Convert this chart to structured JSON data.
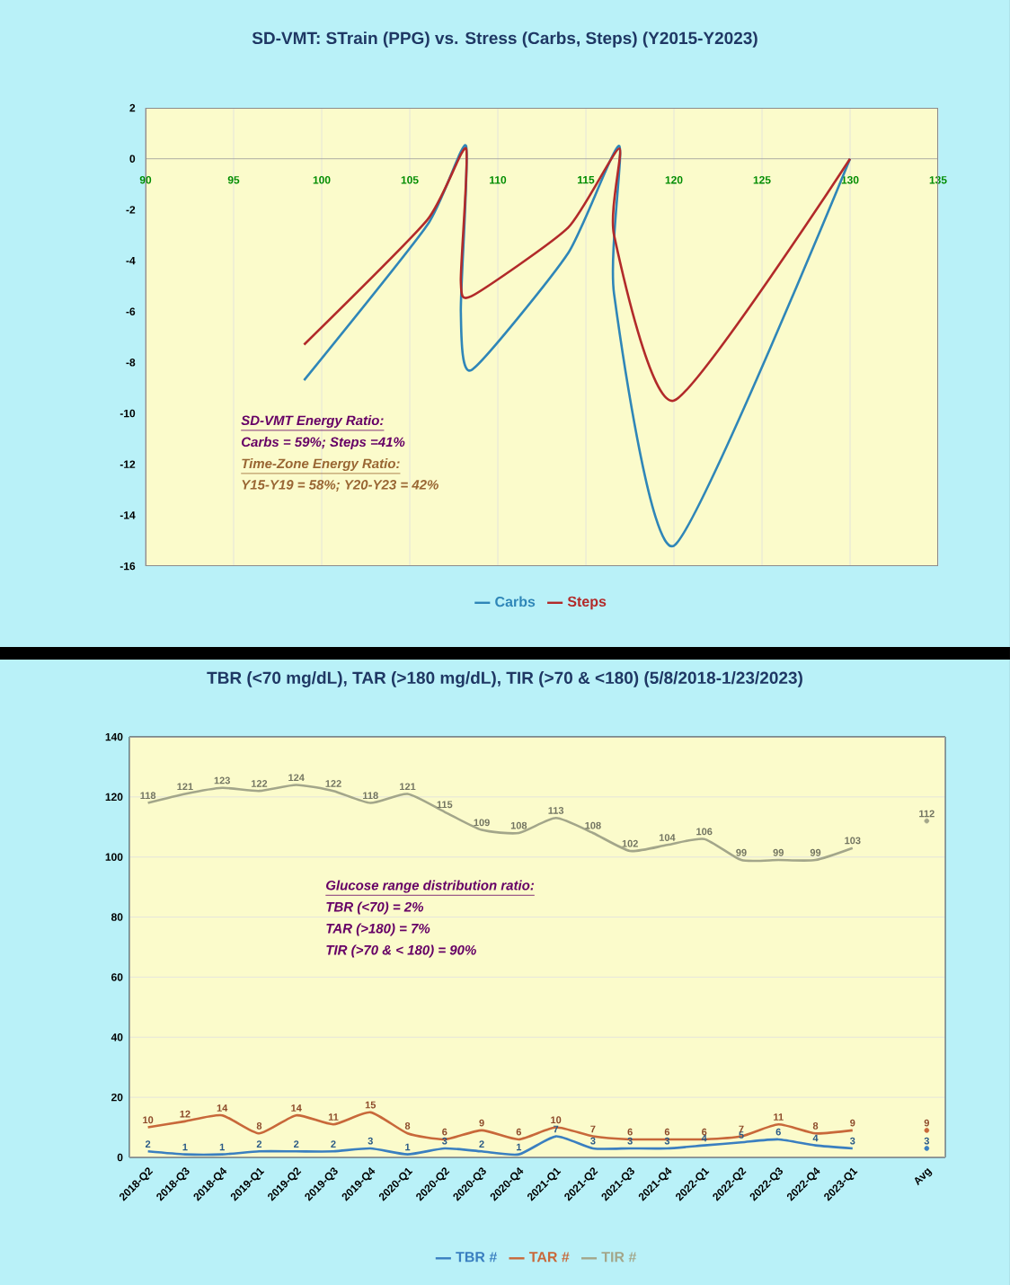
{
  "chart_data": [
    {
      "type": "line",
      "title": "SD-VMT:  STrain (PPG) vs. Stress (Carbs, Steps)  (Y2015-Y2023)",
      "x": [
        99,
        106,
        108.2,
        107.9,
        108.5,
        114,
        116.9,
        116.6,
        120,
        130
      ],
      "series": [
        {
          "name": "Carbs",
          "color": "#2f86b8",
          "values": [
            -8.7,
            -2.6,
            0.5,
            -6,
            -8.3,
            -3.7,
            0.5,
            -5.3,
            -15.2,
            0
          ]
        },
        {
          "name": "Steps",
          "color": "#b22a2a",
          "values": [
            -7.3,
            -2.4,
            0.4,
            -4.8,
            -5.4,
            -2.7,
            0.4,
            -3,
            -9.5,
            0
          ]
        }
      ],
      "xlim": [
        90,
        135
      ],
      "xticks": [
        90,
        95,
        100,
        105,
        110,
        115,
        120,
        125,
        130,
        135
      ],
      "ylim": [
        -16,
        2
      ],
      "yticks": [
        -16,
        -14,
        -12,
        -10,
        -8,
        -6,
        -4,
        -2,
        0,
        2
      ],
      "grid": "x",
      "legend": "bottom",
      "annotations": [
        "SD-VMT Energy Ratio:",
        "Carbs = 59%;  Steps =41%",
        "Time-Zone Energy Ratio:",
        "Y15-Y19 = 58%;  Y20-Y23 = 42%"
      ]
    },
    {
      "type": "line",
      "title": "TBR (<70 mg/dL), TAR (>180 mg/dL), TIR (>70 & <180)  (5/8/2018-1/23/2023)",
      "categories": [
        "2018-Q2",
        "2018-Q3",
        "2018-Q4",
        "2019-Q1",
        "2019-Q2",
        "2019-Q3",
        "2019-Q4",
        "2020-Q1",
        "2020-Q2",
        "2020-Q3",
        "2020-Q4",
        "2021-Q1",
        "2021-Q2",
        "2021-Q3",
        "2021-Q4",
        "2022-Q1",
        "2022-Q2",
        "2022-Q3",
        "2022-Q4",
        "2023-Q1",
        null,
        "Avg"
      ],
      "series": [
        {
          "name": "TBR #",
          "color": "#3a7fc0",
          "values": [
            2,
            1,
            1,
            2,
            2,
            2,
            3,
            1,
            3,
            2,
            1,
            7,
            3,
            3,
            3,
            4,
            5,
            6,
            4,
            3,
            null,
            3
          ]
        },
        {
          "name": "TAR #",
          "color": "#c8683a",
          "values": [
            10,
            12,
            14,
            8,
            14,
            11,
            15,
            8,
            6,
            9,
            6,
            10,
            7,
            6,
            6,
            6,
            7,
            11,
            8,
            9,
            null,
            9
          ]
        },
        {
          "name": "TIR #",
          "color": "#a3a68a",
          "values": [
            118,
            121,
            123,
            122,
            124,
            122,
            118,
            121,
            115,
            109,
            108,
            113,
            108,
            102,
            104,
            106,
            99,
            99,
            99,
            103,
            null,
            112
          ]
        }
      ],
      "ylim": [
        0,
        140
      ],
      "yticks": [
        0,
        20,
        40,
        60,
        80,
        100,
        120,
        140
      ],
      "grid": "y",
      "legend": "bottom",
      "data_labels": true,
      "annotations": [
        "Glucose range distribution ratio:",
        "TBR (<70) = 2%",
        "TAR (>180) = 7%",
        "TIR (>70 & < 180) = 90%"
      ]
    }
  ]
}
